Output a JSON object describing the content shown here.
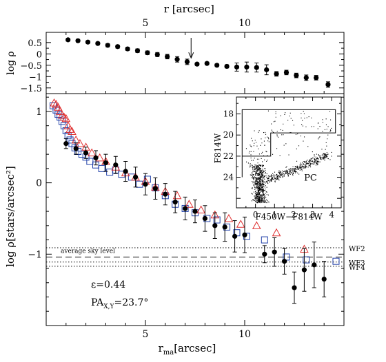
{
  "chart_data": [
    {
      "type": "scatter",
      "panel": "top",
      "x2label": "r [arcsec]",
      "ylabel": "log ρ",
      "xlim": [
        0,
        15
      ],
      "ylim": [
        -1.75,
        0.95
      ],
      "x2ticks": [
        5,
        10
      ],
      "yticks": [
        0.5,
        0,
        -0.5,
        -1,
        -1.5
      ],
      "ytick_labels": [
        "0.5",
        "0",
        "−0.5",
        "−1",
        "−1.5"
      ],
      "arrow_x": 7.3,
      "series": [
        {
          "marker": "filled-circle",
          "color": "#000000",
          "points": [
            {
              "x": 1.1,
              "y": 0.62,
              "err": 0.06
            },
            {
              "x": 1.6,
              "y": 0.58,
              "err": 0.06
            },
            {
              "x": 2.1,
              "y": 0.52,
              "err": 0.06
            },
            {
              "x": 2.6,
              "y": 0.46,
              "err": 0.06
            },
            {
              "x": 3.1,
              "y": 0.38,
              "err": 0.07
            },
            {
              "x": 3.6,
              "y": 0.32,
              "err": 0.07
            },
            {
              "x": 4.1,
              "y": 0.22,
              "err": 0.07
            },
            {
              "x": 4.6,
              "y": 0.14,
              "err": 0.08
            },
            {
              "x": 5.1,
              "y": 0.05,
              "err": 0.08
            },
            {
              "x": 5.6,
              "y": -0.03,
              "err": 0.09
            },
            {
              "x": 6.1,
              "y": -0.12,
              "err": 0.1
            },
            {
              "x": 6.6,
              "y": -0.24,
              "err": 0.12
            },
            {
              "x": 7.1,
              "y": -0.35,
              "err": 0.12
            },
            {
              "x": 7.6,
              "y": -0.45,
              "err": 0.06
            },
            {
              "x": 8.1,
              "y": -0.42,
              "err": 0.06
            },
            {
              "x": 8.6,
              "y": -0.5,
              "err": 0.06
            },
            {
              "x": 9.1,
              "y": -0.55,
              "err": 0.07
            },
            {
              "x": 9.6,
              "y": -0.58,
              "err": 0.18
            },
            {
              "x": 10.1,
              "y": -0.58,
              "err": 0.22
            },
            {
              "x": 10.6,
              "y": -0.6,
              "err": 0.2
            },
            {
              "x": 11.1,
              "y": -0.7,
              "err": 0.22
            },
            {
              "x": 11.6,
              "y": -0.88,
              "err": 0.1
            },
            {
              "x": 12.1,
              "y": -0.82,
              "err": 0.1
            },
            {
              "x": 12.6,
              "y": -0.95,
              "err": 0.1
            },
            {
              "x": 13.1,
              "y": -1.05,
              "err": 0.12
            },
            {
              "x": 13.6,
              "y": -1.05,
              "err": 0.1
            },
            {
              "x": 14.2,
              "y": -1.35,
              "err": 0.12
            }
          ]
        }
      ]
    },
    {
      "type": "scatter",
      "panel": "main",
      "xlabel": "r",
      "xlabel_sub": "ma",
      "xlabel_unit": "[arcsec]",
      "ylabel": "log ρ[stars/arcsec²]",
      "xlim": [
        0,
        15
      ],
      "ylim": [
        -2.0,
        1.25
      ],
      "xticks": [
        5,
        10
      ],
      "yticks": [
        1,
        0,
        -1
      ],
      "ytick_labels": [
        "1",
        "0",
        "−1"
      ],
      "annotations": {
        "ellipticity": "ε=0.44",
        "pa_prefix": "PA",
        "pa_sub": "X,Y",
        "pa_value": "=23.7°",
        "sky_label": "average sky level"
      },
      "hlines": [
        {
          "y": -0.91,
          "style": "dotted",
          "label": "WF2"
        },
        {
          "y": -1.04,
          "style": "dashed",
          "label": ""
        },
        {
          "y": -1.11,
          "style": "dotted",
          "label": "WF3"
        },
        {
          "y": -1.17,
          "style": "dotted",
          "label": "WF4"
        }
      ],
      "series": [
        {
          "marker": "open-square",
          "color": "#1f3fa8",
          "points": [
            [
              0.35,
              1.08
            ],
            [
              0.5,
              1.02
            ],
            [
              0.6,
              0.96
            ],
            [
              0.7,
              0.92
            ],
            [
              0.8,
              0.86
            ],
            [
              0.9,
              0.8
            ],
            [
              1.0,
              0.73
            ],
            [
              1.1,
              0.66
            ],
            [
              1.2,
              0.6
            ],
            [
              1.3,
              0.55
            ],
            [
              1.45,
              0.49
            ],
            [
              1.6,
              0.44
            ],
            [
              1.8,
              0.4
            ],
            [
              2.0,
              0.36
            ],
            [
              2.2,
              0.3
            ],
            [
              2.5,
              0.25
            ],
            [
              2.8,
              0.2
            ],
            [
              3.2,
              0.15
            ],
            [
              3.5,
              0.18
            ],
            [
              3.8,
              0.12
            ],
            [
              4.3,
              0.08
            ],
            [
              4.7,
              -0.02
            ],
            [
              5.1,
              0.05
            ],
            [
              5.5,
              -0.07
            ],
            [
              6.0,
              -0.18
            ],
            [
              6.5,
              -0.3
            ],
            [
              7.0,
              -0.36
            ],
            [
              7.5,
              -0.42
            ],
            [
              8.1,
              -0.5
            ],
            [
              8.6,
              -0.52
            ],
            [
              9.1,
              -0.62
            ],
            [
              9.6,
              -0.7
            ],
            [
              10.1,
              -0.75
            ],
            [
              11.0,
              -0.8
            ],
            [
              12.1,
              -1.04
            ],
            [
              13.1,
              -1.08
            ],
            [
              14.6,
              -1.1
            ]
          ]
        },
        {
          "marker": "open-triangle",
          "color": "#e03030",
          "points": [
            [
              0.4,
              1.12
            ],
            [
              0.5,
              1.1
            ],
            [
              0.6,
              1.06
            ],
            [
              0.7,
              1.0
            ],
            [
              0.8,
              0.95
            ],
            [
              0.9,
              0.92
            ],
            [
              1.0,
              0.9
            ],
            [
              1.1,
              0.8
            ],
            [
              1.2,
              0.75
            ],
            [
              1.3,
              0.72
            ],
            [
              1.5,
              0.6
            ],
            [
              1.7,
              0.55
            ],
            [
              2.0,
              0.5
            ],
            [
              2.3,
              0.42
            ],
            [
              2.7,
              0.35
            ],
            [
              3.0,
              0.3
            ],
            [
              3.5,
              0.22
            ],
            [
              4.0,
              0.14
            ],
            [
              4.5,
              0.08
            ],
            [
              5.0,
              0.02
            ],
            [
              5.5,
              -0.06
            ],
            [
              6.0,
              -0.12
            ],
            [
              6.6,
              -0.18
            ],
            [
              7.2,
              -0.3
            ],
            [
              7.8,
              -0.38
            ],
            [
              8.5,
              -0.45
            ],
            [
              9.2,
              -0.5
            ],
            [
              9.8,
              -0.58
            ],
            [
              10.6,
              -0.6
            ],
            [
              11.6,
              -0.7
            ],
            [
              13.0,
              -0.93
            ]
          ]
        },
        {
          "marker": "filled-circle",
          "color": "#000000",
          "points": [
            {
              "x": 1.0,
              "y": 0.55,
              "err": 0.07
            },
            {
              "x": 1.5,
              "y": 0.48,
              "err": 0.08
            },
            {
              "x": 2.0,
              "y": 0.42,
              "err": 0.08
            },
            {
              "x": 2.5,
              "y": 0.35,
              "err": 0.1
            },
            {
              "x": 3.0,
              "y": 0.28,
              "err": 0.12
            },
            {
              "x": 3.5,
              "y": 0.25,
              "err": 0.12
            },
            {
              "x": 4.0,
              "y": 0.16,
              "err": 0.14
            },
            {
              "x": 4.5,
              "y": 0.08,
              "err": 0.14
            },
            {
              "x": 5.0,
              "y": -0.02,
              "err": 0.15
            },
            {
              "x": 5.5,
              "y": -0.08,
              "err": 0.15
            },
            {
              "x": 6.0,
              "y": -0.16,
              "err": 0.15
            },
            {
              "x": 6.5,
              "y": -0.27,
              "err": 0.15
            },
            {
              "x": 7.0,
              "y": -0.36,
              "err": 0.16
            },
            {
              "x": 7.5,
              "y": -0.4,
              "err": 0.16
            },
            {
              "x": 8.0,
              "y": -0.5,
              "err": 0.18
            },
            {
              "x": 8.5,
              "y": -0.6,
              "err": 0.18
            },
            {
              "x": 9.0,
              "y": -0.62,
              "err": 0.2
            },
            {
              "x": 9.5,
              "y": -0.75,
              "err": 0.22
            },
            {
              "x": 10.0,
              "y": -0.73,
              "err": 0.25
            },
            {
              "x": 11.0,
              "y": -1.0,
              "err": 0.12
            },
            {
              "x": 11.5,
              "y": -0.97,
              "err": 0.2
            },
            {
              "x": 12.0,
              "y": -1.1,
              "err": 0.18
            },
            {
              "x": 12.5,
              "y": -1.47,
              "err": 0.22
            },
            {
              "x": 13.0,
              "y": -1.22,
              "err": 0.3
            },
            {
              "x": 13.5,
              "y": -1.15,
              "err": 0.32
            },
            {
              "x": 14.0,
              "y": -1.35,
              "err": 0.25
            }
          ]
        }
      ]
    },
    {
      "type": "scatter",
      "panel": "inset",
      "label": "PC",
      "xlabel": "F450W−F814W",
      "ylabel": "F814W",
      "xlim": [
        -1,
        4.5
      ],
      "ylim": [
        26.9,
        16.4
      ],
      "xticks": [
        0,
        1,
        2,
        3,
        4
      ],
      "yticks": [
        18,
        20,
        22,
        24
      ],
      "box": [
        [
          -0.7,
          24.0
        ],
        [
          -0.7,
          22.0
        ],
        [
          0.8,
          22.0
        ],
        [
          0.8,
          19.8
        ],
        [
          4.2,
          19.8
        ],
        [
          4.2,
          17.6
        ],
        [
          0.8,
          17.6
        ],
        [
          -0.7,
          17.6
        ],
        [
          -0.7,
          24.0
        ]
      ],
      "note": "dense CMD point cloud: main sequence near color 0..1, red giant branch to color ~3.5"
    }
  ]
}
